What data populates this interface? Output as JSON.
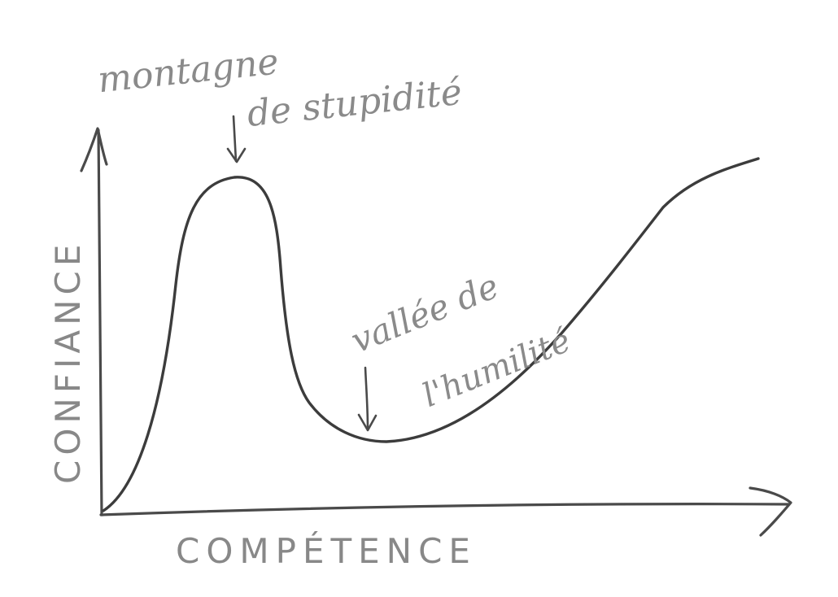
{
  "diagram": {
    "y_axis_label": "CONFIANCE",
    "x_axis_label": "COMPÉTENCE",
    "annotations": {
      "peak": {
        "line1": "montagne",
        "line2": "de stupidité"
      },
      "valley": {
        "line1": "vallée de",
        "line2": "l'humilité"
      }
    }
  },
  "colors": {
    "ink": "#3c3c3c",
    "pencil": "#8a8a8a",
    "paper": "#ffffff"
  }
}
